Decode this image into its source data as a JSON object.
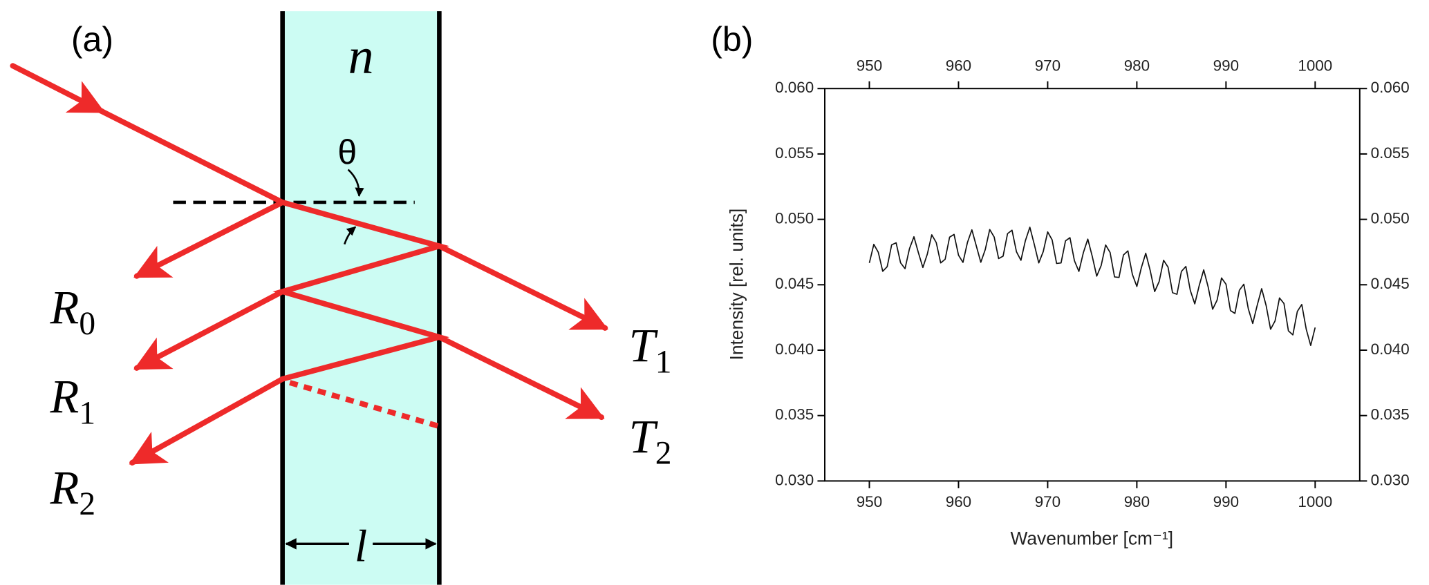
{
  "diagram": {
    "panel_label": "(a)",
    "medium": "n",
    "angle": "θ",
    "thickness": "l",
    "reflected": [
      {
        "symbol": "R",
        "index": "0"
      },
      {
        "symbol": "R",
        "index": "1"
      },
      {
        "symbol": "R",
        "index": "2"
      }
    ],
    "transmitted": [
      {
        "symbol": "T",
        "index": "1"
      },
      {
        "symbol": "T",
        "index": "2"
      }
    ]
  },
  "chart_data": {
    "type": "line",
    "panel_label": "(b)",
    "xlabel": "Wavenumber [cm⁻¹]",
    "ylabel": "Intensity [rel. units]",
    "color": "#111111",
    "xlim": [
      945,
      1005
    ],
    "ylim": [
      0.03,
      0.06
    ],
    "xticks": [
      950,
      960,
      970,
      980,
      990,
      1000
    ],
    "yticks": [
      {
        "value": 0.03,
        "label": "0.030"
      },
      0.035,
      {
        "value": 0.04,
        "label": "0.040"
      },
      0.045,
      {
        "value": 0.05,
        "label": "0.050"
      },
      0.055,
      {
        "value": 0.06,
        "label": "0.060"
      }
    ],
    "x": [
      950,
      950.5,
      951,
      951.5,
      952,
      952.5,
      953,
      953.5,
      954,
      954.5,
      955,
      955.5,
      956,
      956.5,
      957,
      957.5,
      958,
      958.5,
      959,
      959.5,
      960,
      960.5,
      961,
      961.5,
      962,
      962.5,
      963,
      963.5,
      964,
      964.5,
      965,
      965.5,
      966,
      966.5,
      967,
      967.5,
      968,
      968.5,
      969,
      969.5,
      970,
      970.5,
      971,
      971.5,
      972,
      972.5,
      973,
      973.5,
      974,
      974.5,
      975,
      975.5,
      976,
      976.5,
      977,
      977.5,
      978,
      978.5,
      979,
      979.5,
      980,
      980.5,
      981,
      981.5,
      982,
      982.5,
      983,
      983.5,
      984,
      984.5,
      985,
      985.5,
      986,
      986.5,
      987,
      987.5,
      988,
      988.5,
      989,
      989.5,
      990,
      990.5,
      991,
      991.5,
      992,
      992.5,
      993,
      993.5,
      994,
      994.5,
      995,
      995.5,
      996,
      996.5,
      997,
      997.5,
      998,
      998.5,
      999,
      999.5,
      1000
    ],
    "values": [
      0.04667,
      0.04809,
      0.04749,
      0.04603,
      0.04638,
      0.04805,
      0.04821,
      0.04668,
      0.04623,
      0.04776,
      0.04867,
      0.04745,
      0.04632,
      0.04734,
      0.04882,
      0.04823,
      0.04667,
      0.04695,
      0.04864,
      0.04885,
      0.04726,
      0.04671,
      0.04823,
      0.0492,
      0.04796,
      0.04672,
      0.04769,
      0.04922,
      0.04865,
      0.047,
      0.04719,
      0.04891,
      0.04917,
      0.04752,
      0.04687,
      0.04837,
      0.0494,
      0.04808,
      0.04667,
      0.04753,
      0.04904,
      0.04843,
      0.04663,
      0.04667,
      0.04836,
      0.0486,
      0.04684,
      0.04602,
      0.04745,
      0.04849,
      0.04717,
      0.04566,
      0.04647,
      0.04804,
      0.04747,
      0.0456,
      0.04556,
      0.04728,
      0.04759,
      0.04579,
      0.04487,
      0.04629,
      0.04741,
      0.04609,
      0.04448,
      0.04524,
      0.04687,
      0.04635,
      0.0444,
      0.04427,
      0.04602,
      0.0464,
      0.04456,
      0.04354,
      0.04495,
      0.04614,
      0.04483,
      0.04313,
      0.04382,
      0.04552,
      0.04504,
      0.04303,
      0.04281,
      0.04458,
      0.04504,
      0.04317,
      0.04204,
      0.04343,
      0.0447,
      0.04341,
      0.0416,
      0.04223,
      0.04399,
      0.04357,
      0.04148,
      0.04117,
      0.04296,
      0.04349,
      0.0416,
      0.04036,
      0.04173
    ]
  }
}
